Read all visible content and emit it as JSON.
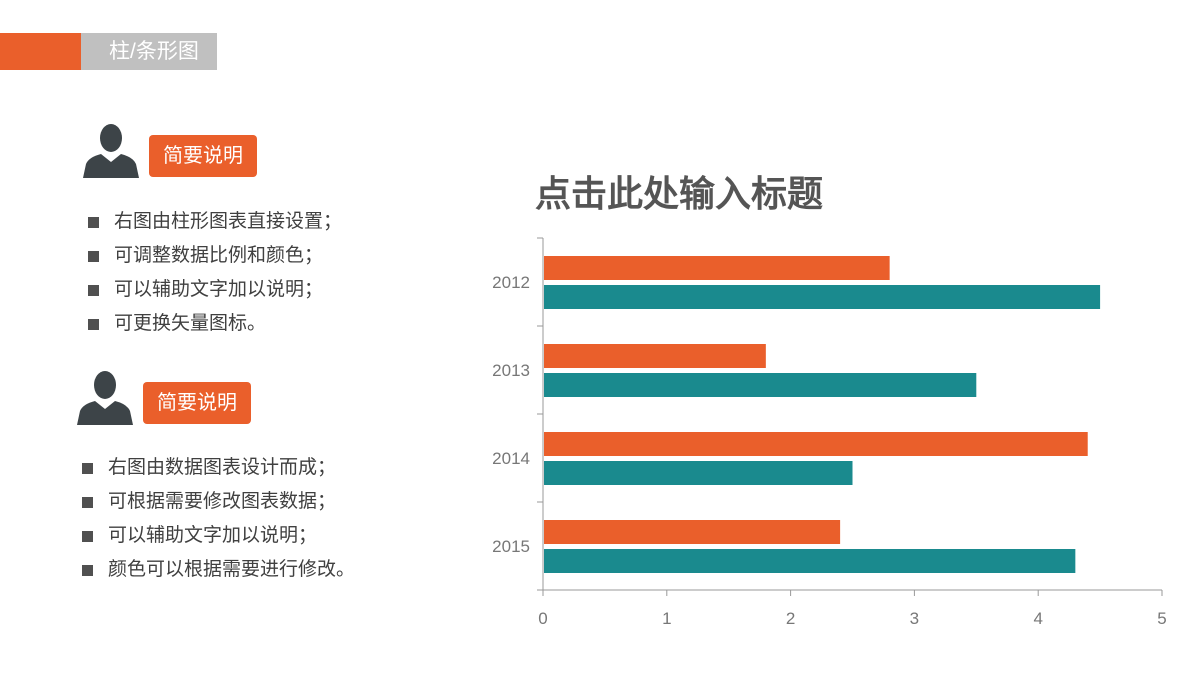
{
  "header": {
    "section_label": "柱/条形图"
  },
  "blocks": [
    {
      "badge": "简要说明",
      "items": [
        "右图由柱形图表直接设置；",
        "可调整数据比例和颜色；",
        "可以辅助文字加以说明；",
        "可更换矢量图标。"
      ]
    },
    {
      "badge": "简要说明",
      "items": [
        "右图由数据图表设计而成；",
        "可根据需要修改图表数据；",
        "可以辅助文字加以说明；",
        "颜色可以根据需要进行修改。"
      ]
    }
  ],
  "colors": {
    "accent": "#ea5f2b",
    "teal": "#1a8a8e",
    "icon": "#3d4448"
  },
  "chart_data": {
    "type": "bar",
    "orientation": "horizontal",
    "title": "点击此处输入标题",
    "categories": [
      "2012",
      "2013",
      "2014",
      "2015"
    ],
    "series": [
      {
        "values": [
          2.8,
          1.8,
          4.4,
          2.4
        ],
        "color": "#ea5f2b"
      },
      {
        "values": [
          4.5,
          3.5,
          2.5,
          4.3
        ],
        "color": "#1a8a8e"
      }
    ],
    "xlim": [
      0,
      5
    ],
    "xticks": [
      "0",
      "1",
      "2",
      "3",
      "4",
      "5"
    ],
    "grid": false
  }
}
